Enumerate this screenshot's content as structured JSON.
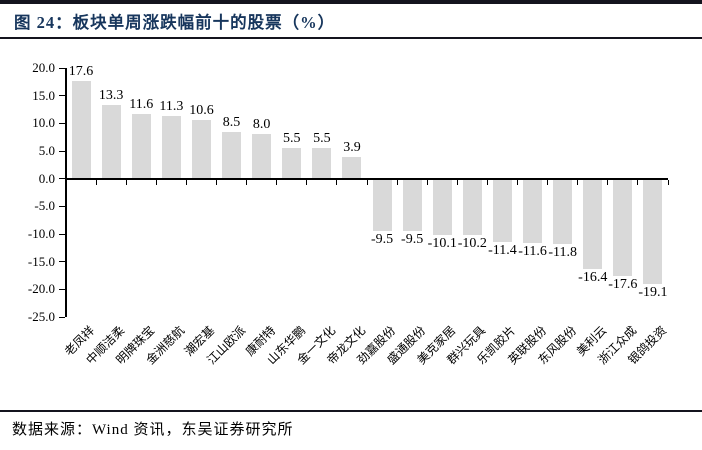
{
  "header": {
    "figure_label": "图 24：板块单周涨跌幅前十的股票（%）"
  },
  "footer": {
    "source": "数据来源：Wind 资讯，东吴证券研究所"
  },
  "colors": {
    "title_text": "#17365D",
    "rule": "#14141e",
    "axis": "#000000",
    "bar_fill": "#d9d9d9",
    "label_text": "#000000"
  },
  "chart_data": {
    "type": "bar",
    "title": "板块单周涨跌幅前十的股票（%）",
    "categories": [
      "老凤祥",
      "中顺洁柔",
      "明牌珠宝",
      "金洲慈航",
      "潮宏基",
      "江山欧派",
      "康耐特",
      "山东华鹏",
      "金一文化",
      "帝龙文化",
      "劲嘉股份",
      "盛通股份",
      "美克家居",
      "群兴玩具",
      "乐凯胶片",
      "英联股份",
      "东风股份",
      "美利云",
      "浙江众成",
      "银鸽投资"
    ],
    "values": [
      17.6,
      13.3,
      11.6,
      11.3,
      10.6,
      8.5,
      8.0,
      5.5,
      5.5,
      3.9,
      -9.5,
      -9.5,
      -10.1,
      -10.2,
      -11.4,
      -11.6,
      -11.8,
      -16.4,
      -17.6,
      -19.1
    ],
    "value_labels": [
      "17.6",
      "13.3",
      "11.6",
      "11.3",
      "10.6",
      "8.5",
      "8.0",
      "5.5",
      "5.5",
      "3.9",
      "-9.5",
      "-9.5",
      "-10.1",
      "-10.2",
      "-11.4",
      "-11.6",
      "-11.8",
      "-16.4",
      "-17.6",
      "-19.1"
    ],
    "xlabel": "",
    "ylabel": "",
    "ylim": [
      -25,
      20
    ],
    "ytick_step": 5,
    "ytick_labels": [
      "20.0",
      "15.0",
      "10.0",
      "5.0",
      "0.0",
      "-5.0",
      "-10.0",
      "-15.0",
      "-20.0",
      "-25.0"
    ],
    "grid": false,
    "legend_position": "none",
    "bar_color": "#d9d9d9"
  }
}
